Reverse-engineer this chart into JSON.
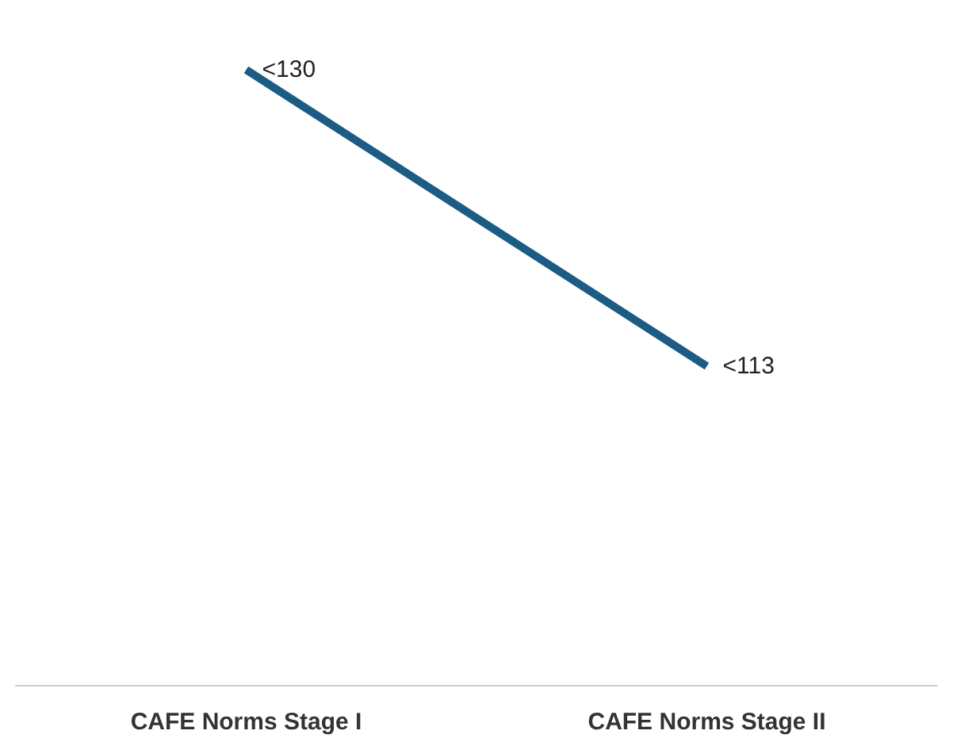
{
  "chart_data": {
    "type": "line",
    "categories": [
      "CAFE Norms Stage I",
      "CAFE Norms Stage II"
    ],
    "series": [
      {
        "color": "#1c5c84",
        "values": [
          130,
          113
        ],
        "value_labels": [
          "<130",
          "<113"
        ]
      }
    ],
    "tick_labels": "x",
    "marker": "none",
    "line_style": "solid"
  }
}
